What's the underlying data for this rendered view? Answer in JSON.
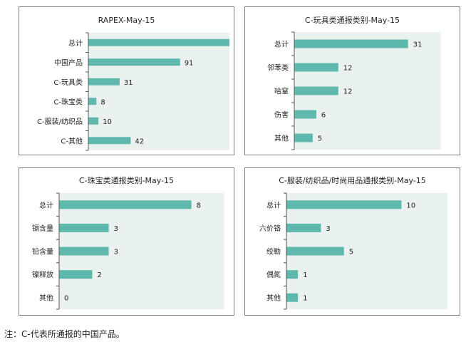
{
  "chart_data": [
    {
      "type": "bar",
      "orientation": "horizontal",
      "title": "RAPEX-May-15",
      "categories": [
        "总计",
        "中国产品",
        "C-玩具类",
        "C-珠宝类",
        "C-服装/纺织品",
        "C-其他"
      ],
      "values": [
        140,
        91,
        31,
        8,
        10,
        42
      ],
      "xlim": [
        0,
        140
      ],
      "bar_color": "#5fb8ad",
      "plot_bg": "#eaf2f0",
      "grid": false,
      "legend": "none"
    },
    {
      "type": "bar",
      "orientation": "horizontal",
      "title": "C-玩具类通报类别-May-15",
      "categories": [
        "总计",
        "邻苯类",
        "哈窒",
        "伤害",
        "其他"
      ],
      "values": [
        31,
        12,
        12,
        6,
        5
      ],
      "xlim": [
        0,
        40
      ],
      "bar_color": "#5fb8ad",
      "plot_bg": "#eaf2f0",
      "grid": false,
      "legend": "none"
    },
    {
      "type": "bar",
      "orientation": "horizontal",
      "title": "C-珠宝类通报类别-May-15",
      "categories": [
        "总计",
        "镉含量",
        "铅含量",
        "镍释放",
        "其他"
      ],
      "values": [
        8,
        3,
        3,
        2,
        0
      ],
      "xlim": [
        0,
        10
      ],
      "bar_color": "#5fb8ad",
      "plot_bg": "#eaf2f0",
      "grid": false,
      "legend": "none"
    },
    {
      "type": "bar",
      "orientation": "horizontal",
      "title": "C-服装/纺织品/时尚用品通报类别-May-15",
      "categories": [
        "总计",
        "六价铬",
        "绞勒",
        "偶氮",
        "其他"
      ],
      "values": [
        10,
        3,
        5,
        1,
        1
      ],
      "xlim": [
        0,
        14
      ],
      "bar_color": "#5fb8ad",
      "plot_bg": "#eaf2f0",
      "grid": false,
      "legend": "none"
    }
  ],
  "note": "注：C-代表所通报的中国产品。"
}
